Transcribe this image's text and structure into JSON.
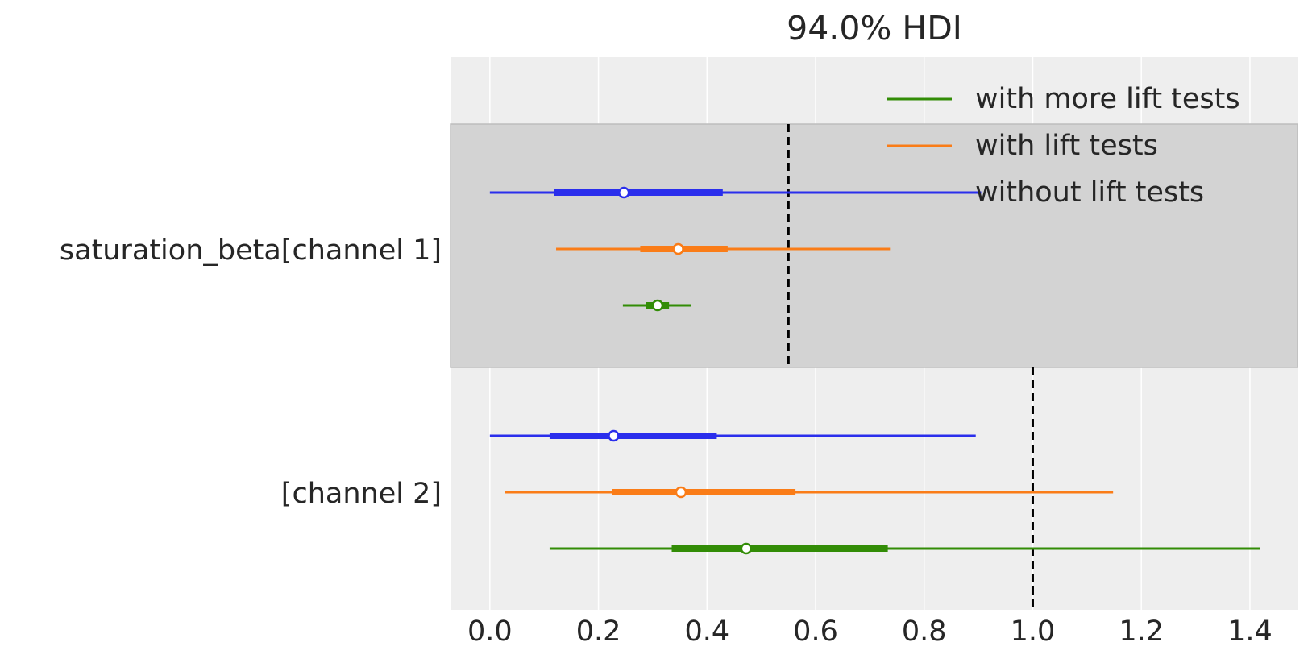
{
  "chart_data": {
    "type": "forest",
    "title": "94.0% HDI",
    "categories": [
      "saturation_beta[channel 1]",
      "[channel 2]"
    ],
    "series": [
      {
        "name": "with more lift tests",
        "color": "#328c06",
        "values": [
          0.309,
          0.472
        ],
        "hdi_low": [
          0.245,
          0.11
        ],
        "hdi_high": [
          0.37,
          1.418
        ],
        "iqr_low": [
          0.288,
          0.335
        ],
        "iqr_high": [
          0.33,
          0.733
        ]
      },
      {
        "name": "with lift tests",
        "color": "#fa7c17",
        "values": [
          0.347,
          0.352
        ],
        "hdi_low": [
          0.122,
          0.028
        ],
        "hdi_high": [
          0.737,
          1.148
        ],
        "iqr_low": [
          0.277,
          0.225
        ],
        "iqr_high": [
          0.438,
          0.563
        ]
      },
      {
        "name": "without lift tests",
        "color": "#2a2eec",
        "values": [
          0.247,
          0.228
        ],
        "hdi_low": [
          0.0,
          0.0
        ],
        "hdi_high": [
          0.905,
          0.895
        ],
        "iqr_low": [
          0.119,
          0.11
        ],
        "iqr_high": [
          0.429,
          0.418
        ]
      }
    ],
    "reference_values": [
      0.55,
      1.0
    ],
    "xlim": [
      -0.0725,
      1.4877
    ],
    "xticks": [
      {
        "value": 0,
        "label": "0.0"
      },
      0.2,
      0.4,
      0.6,
      0.8,
      {
        "value": 1,
        "label": "1.0"
      },
      1.2,
      1.4
    ],
    "grid": true,
    "legend": "upper right"
  }
}
